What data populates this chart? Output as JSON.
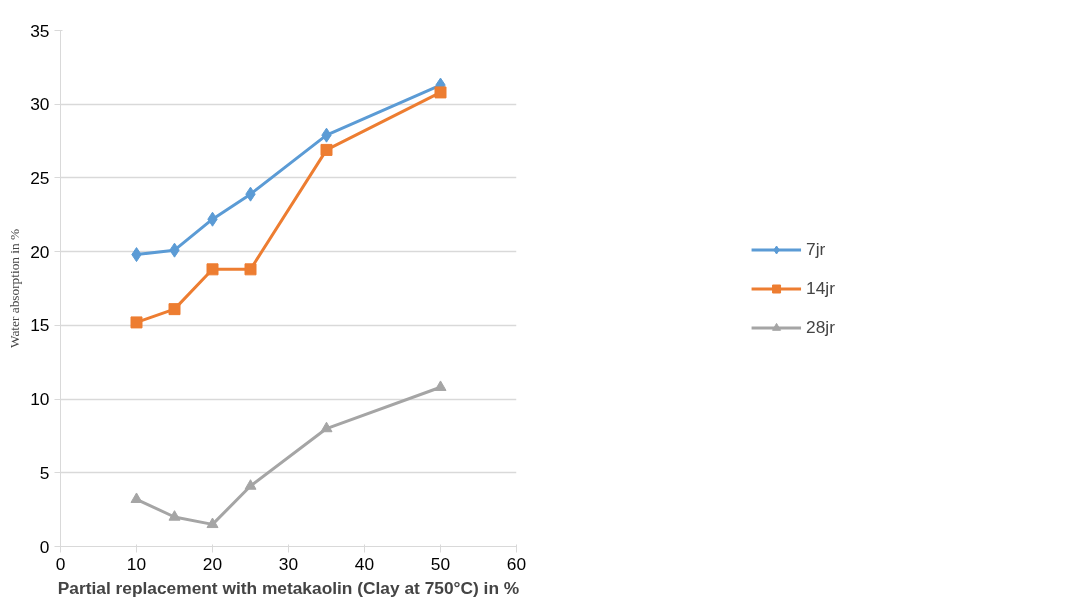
{
  "chart_data": {
    "type": "line",
    "xlabel": "Partial replacement with metakaolin (Clay at 750°C) in %",
    "ylabel": "Water absorption in %",
    "x": [
      10,
      15,
      20,
      25,
      35,
      50
    ],
    "series": [
      {
        "name": "7jr",
        "color": "#5b9bd5",
        "marker": "diamond",
        "values": [
          19.8,
          20.1,
          22.2,
          23.9,
          27.9,
          31.3
        ]
      },
      {
        "name": "14jr",
        "color": "#ed7d31",
        "marker": "square",
        "values": [
          15.2,
          16.1,
          18.8,
          18.8,
          26.9,
          30.8
        ]
      },
      {
        "name": "28jr",
        "color": "#a5a5a5",
        "marker": "triangle",
        "values": [
          3.2,
          2.0,
          1.5,
          4.1,
          8.0,
          10.8
        ]
      }
    ],
    "xlim": [
      0,
      60
    ],
    "xticks": [
      0,
      10,
      20,
      30,
      40,
      50,
      60
    ],
    "ylim": [
      0,
      35
    ],
    "yticks": [
      0,
      5,
      10,
      15,
      20,
      25,
      30,
      35
    ],
    "grid": "y",
    "legend": "right",
    "line_style": "solid"
  }
}
